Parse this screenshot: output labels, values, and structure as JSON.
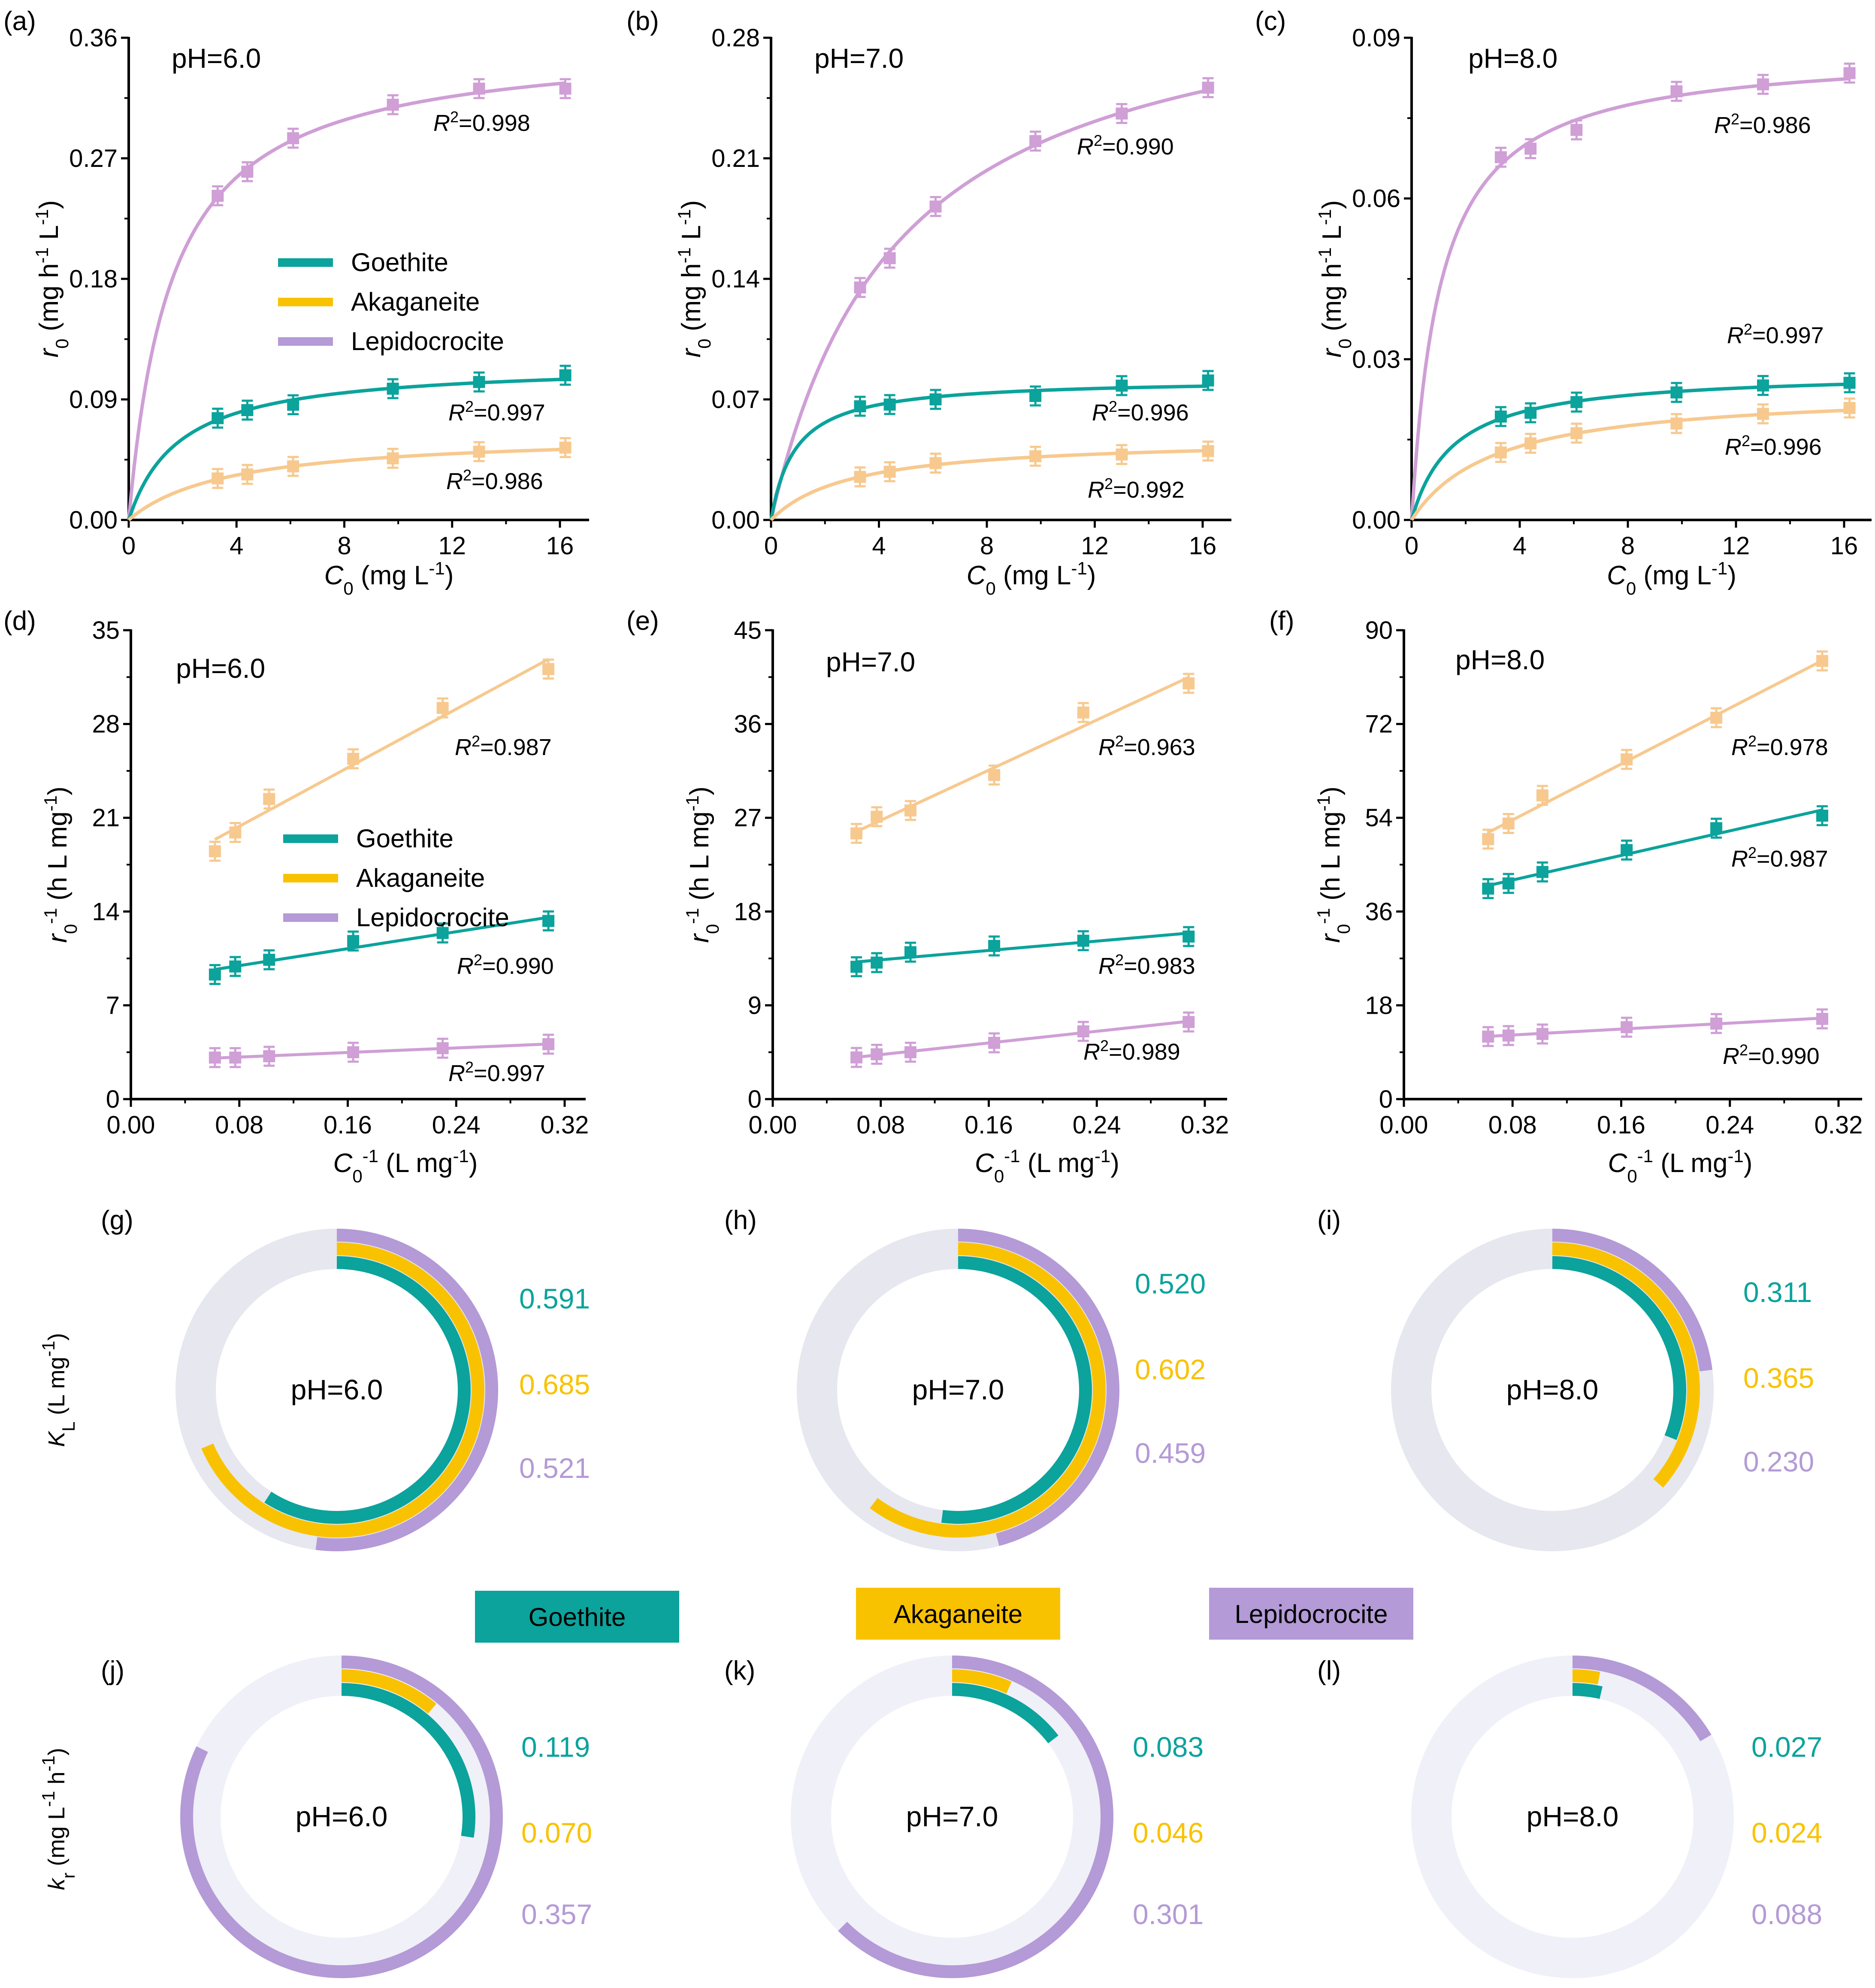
{
  "colors": {
    "goethite": "#0ba39c",
    "akaganeite": "#f9c200",
    "lepidocrocite": "#b49ad6",
    "goethite_series": "#0ba39c",
    "akaganeite_series": "#f7c98f",
    "lepidocrocite_series": "#cf9fd6",
    "ring_track_top": "#e6e7ef",
    "ring_track_bottom": "#f0f0f8"
  },
  "legend": {
    "goethite": "Goethite",
    "akaganeite": "Akaganeite",
    "lepidocrocite": "Lepidocrocite"
  },
  "ring_legend": [
    "Goethite",
    "Akaganeite",
    "Lepidocrocite"
  ],
  "chart_data": [
    {
      "panel": "(a)",
      "type": "line",
      "annotation": "pH=6.0",
      "xlabel": "C0 (mg L-1)",
      "ylabel": "r0 (mg h-1 L-1)",
      "xlim": [
        0,
        17
      ],
      "ylim": [
        0,
        0.36
      ],
      "xticks": [
        "0",
        "4",
        "8",
        "12",
        "16"
      ],
      "yticks": [
        "0.00",
        "0.09",
        "0.18",
        "0.27",
        "0.36"
      ],
      "xtick_values": [
        0,
        4,
        8,
        12,
        16
      ],
      "ytick_values": [
        0,
        0.09,
        0.18,
        0.27,
        0.36
      ],
      "fit": "langmuir",
      "legend": "inside-center",
      "x": [
        3.3,
        4.4,
        6.1,
        9.8,
        13.0,
        16.2
      ],
      "series": [
        {
          "name": "Lepidocrocite",
          "values": [
            0.242,
            0.26,
            0.285,
            0.31,
            0.322,
            0.322
          ],
          "r2": "0.998"
        },
        {
          "name": "Goethite",
          "values": [
            0.076,
            0.082,
            0.086,
            0.098,
            0.103,
            0.108
          ],
          "r2": "0.997"
        },
        {
          "name": "Akaganeite",
          "values": [
            0.031,
            0.034,
            0.04,
            0.046,
            0.051,
            0.054
          ],
          "r2": "0.986"
        }
      ]
    },
    {
      "panel": "(b)",
      "type": "line",
      "annotation": "pH=7.0",
      "xlabel": "C0 (mg L-1)",
      "ylabel": "r0 (mg h-1 L-1)",
      "xlim": [
        0,
        17
      ],
      "ylim": [
        0,
        0.28
      ],
      "xticks": [
        "0",
        "4",
        "8",
        "12",
        "16"
      ],
      "yticks": [
        "0.00",
        "0.07",
        "0.14",
        "0.21",
        "0.28"
      ],
      "xtick_values": [
        0,
        4,
        8,
        12,
        16
      ],
      "ytick_values": [
        0,
        0.07,
        0.14,
        0.21,
        0.28
      ],
      "fit": "langmuir",
      "x": [
        3.3,
        4.4,
        6.1,
        9.8,
        13.0,
        16.2
      ],
      "series": [
        {
          "name": "Lepidocrocite",
          "values": [
            0.135,
            0.152,
            0.182,
            0.22,
            0.236,
            0.251
          ],
          "r2": "0.990"
        },
        {
          "name": "Goethite",
          "values": [
            0.066,
            0.067,
            0.07,
            0.072,
            0.078,
            0.081
          ],
          "r2": "0.996"
        },
        {
          "name": "Akaganeite",
          "values": [
            0.025,
            0.028,
            0.033,
            0.037,
            0.038,
            0.04
          ],
          "r2": "0.992"
        }
      ]
    },
    {
      "panel": "(c)",
      "type": "line",
      "annotation": "pH=8.0",
      "xlabel": "C0 (mg L-1)",
      "ylabel": "r0 (mg h-1 L-1)",
      "xlim": [
        0,
        17
      ],
      "ylim": [
        0,
        0.09
      ],
      "xticks": [
        "0",
        "4",
        "8",
        "12",
        "16"
      ],
      "yticks": [
        "0.00",
        "0.03",
        "0.06",
        "0.09"
      ],
      "xtick_values": [
        0,
        4,
        8,
        12,
        16
      ],
      "ytick_values": [
        0,
        0.03,
        0.06,
        0.09
      ],
      "fit": "langmuir",
      "x": [
        3.3,
        4.4,
        6.1,
        9.8,
        13.0,
        16.2
      ],
      "series": [
        {
          "name": "Lepidocrocite",
          "values": [
            0.0677,
            0.0693,
            0.0728,
            0.08,
            0.0813,
            0.0834
          ],
          "r2": "0.986"
        },
        {
          "name": "Goethite",
          "values": [
            0.0193,
            0.02,
            0.022,
            0.0238,
            0.0251,
            0.0256
          ],
          "r2": "0.997"
        },
        {
          "name": "Akaganeite",
          "values": [
            0.0126,
            0.0143,
            0.0162,
            0.018,
            0.0198,
            0.0209
          ],
          "r2": "0.996"
        }
      ]
    },
    {
      "panel": "(d)",
      "type": "scatter",
      "annotation": "pH=6.0",
      "xlabel": "C0-1 (L mg-1)",
      "ylabel": "r0-1 (h L mg-1)",
      "xlim": [
        0,
        0.34
      ],
      "ylim": [
        0,
        35
      ],
      "xticks": [
        "0.00",
        "0.08",
        "0.16",
        "0.24",
        "0.32"
      ],
      "yticks": [
        "0",
        "7",
        "14",
        "21",
        "28",
        "35"
      ],
      "xtick_values": [
        0,
        0.08,
        0.16,
        0.24,
        0.32
      ],
      "ytick_values": [
        0,
        7,
        14,
        21,
        28,
        35
      ],
      "fit": "linear",
      "legend": "inside-center",
      "x": [
        0.062,
        0.077,
        0.102,
        0.164,
        0.23,
        0.308
      ],
      "series": [
        {
          "name": "Akaganeite",
          "values": [
            18.5,
            19.9,
            22.4,
            25.4,
            29.2,
            32.1
          ],
          "r2": "0.987"
        },
        {
          "name": "Goethite",
          "values": [
            9.3,
            9.9,
            10.4,
            11.8,
            12.4,
            13.3
          ],
          "r2": "0.990"
        },
        {
          "name": "Lepidocrocite",
          "values": [
            3.1,
            3.1,
            3.2,
            3.5,
            3.8,
            4.1
          ],
          "r2": "0.997"
        }
      ]
    },
    {
      "panel": "(e)",
      "type": "scatter",
      "annotation": "pH=7.0",
      "xlabel": "C0-1 (L mg-1)",
      "ylabel": "r0-1 (h L mg-1)",
      "xlim": [
        0,
        0.34
      ],
      "ylim": [
        0,
        45
      ],
      "xticks": [
        "0.00",
        "0.08",
        "0.16",
        "0.24",
        "0.32"
      ],
      "yticks": [
        "0",
        "9",
        "18",
        "27",
        "36",
        "45"
      ],
      "xtick_values": [
        0,
        0.08,
        0.16,
        0.24,
        0.32
      ],
      "ytick_values": [
        0,
        9,
        18,
        27,
        36,
        45
      ],
      "fit": "linear",
      "x": [
        0.062,
        0.077,
        0.102,
        0.164,
        0.23,
        0.308
      ],
      "series": [
        {
          "name": "Akaganeite",
          "values": [
            25.5,
            27.1,
            27.7,
            31.1,
            37.1,
            39.9
          ],
          "r2": "0.963"
        },
        {
          "name": "Goethite",
          "values": [
            12.7,
            13.1,
            14.1,
            14.7,
            15.2,
            15.6
          ],
          "r2": "0.983"
        },
        {
          "name": "Lepidocrocite",
          "values": [
            4.0,
            4.3,
            4.5,
            5.4,
            6.5,
            7.4
          ],
          "r2": "0.989"
        }
      ]
    },
    {
      "panel": "(f)",
      "type": "scatter",
      "annotation": "pH=8.0",
      "xlabel": "C0-1 (L mg-1)",
      "ylabel": "r0-1 (h L mg-1)",
      "xlim": [
        0,
        0.34
      ],
      "ylim": [
        0,
        90
      ],
      "xticks": [
        "0.00",
        "0.08",
        "0.16",
        "0.24",
        "0.32"
      ],
      "yticks": [
        "0",
        "18",
        "36",
        "54",
        "72",
        "90"
      ],
      "xtick_values": [
        0,
        0.08,
        0.16,
        0.24,
        0.32
      ],
      "ytick_values": [
        0,
        18,
        36,
        54,
        72,
        90
      ],
      "fit": "linear",
      "x": [
        0.062,
        0.077,
        0.102,
        0.164,
        0.23,
        0.308
      ],
      "series": [
        {
          "name": "Akaganeite",
          "values": [
            49.9,
            52.9,
            58.3,
            65.2,
            73.2,
            84.1
          ],
          "r2": "0.978"
        },
        {
          "name": "Goethite",
          "values": [
            40.4,
            41.4,
            43.6,
            47.8,
            52.0,
            54.4
          ],
          "r2": "0.987"
        },
        {
          "name": "Lepidocrocite",
          "values": [
            12.0,
            12.2,
            12.5,
            13.8,
            14.5,
            15.4
          ],
          "r2": "0.990"
        }
      ]
    },
    {
      "panel": "(g)",
      "type": "radial-bar",
      "center_label": "pH=6.0",
      "ylabel": "KL (L mg-1)",
      "series": [
        {
          "name": "Goethite",
          "value": "0.591",
          "fill": 0.591
        },
        {
          "name": "Akaganeite",
          "value": "0.685",
          "fill": 0.685
        },
        {
          "name": "Lepidocrocite",
          "value": "0.521",
          "fill": 0.521
        }
      ]
    },
    {
      "panel": "(h)",
      "type": "radial-bar",
      "center_label": "pH=7.0",
      "series": [
        {
          "name": "Goethite",
          "value": "0.520",
          "fill": 0.52
        },
        {
          "name": "Akaganeite",
          "value": "0.602",
          "fill": 0.602
        },
        {
          "name": "Lepidocrocite",
          "value": "0.459",
          "fill": 0.459
        }
      ]
    },
    {
      "panel": "(i)",
      "type": "radial-bar",
      "center_label": "pH=8.0",
      "series": [
        {
          "name": "Goethite",
          "value": "0.311",
          "fill": 0.311
        },
        {
          "name": "Akaganeite",
          "value": "0.365",
          "fill": 0.365
        },
        {
          "name": "Lepidocrocite",
          "value": "0.230",
          "fill": 0.23
        }
      ]
    },
    {
      "panel": "(j)",
      "type": "radial-bar",
      "center_label": "pH=6.0",
      "ylabel": "kr (mg L-1 h-1)",
      "series": [
        {
          "name": "Goethite",
          "value": "0.119",
          "fill": 0.275
        },
        {
          "name": "Akaganeite",
          "value": "0.070",
          "fill": 0.111
        },
        {
          "name": "Lepidocrocite",
          "value": "0.357",
          "fill": 0.822
        }
      ]
    },
    {
      "panel": "(k)",
      "type": "radial-bar",
      "center_label": "pH=7.0",
      "series": [
        {
          "name": "Goethite",
          "value": "0.083",
          "fill": 0.146
        },
        {
          "name": "Akaganeite",
          "value": "0.046",
          "fill": 0.066
        },
        {
          "name": "Lepidocrocite",
          "value": "0.301",
          "fill": 0.625
        }
      ]
    },
    {
      "panel": "(l)",
      "type": "radial-bar",
      "center_label": "pH=8.0",
      "series": [
        {
          "name": "Goethite",
          "value": "0.027",
          "fill": 0.036
        },
        {
          "name": "Akaganeite",
          "value": "0.024",
          "fill": 0.03
        },
        {
          "name": "Lepidocrocite",
          "value": "0.088",
          "fill": 0.165
        }
      ]
    }
  ]
}
